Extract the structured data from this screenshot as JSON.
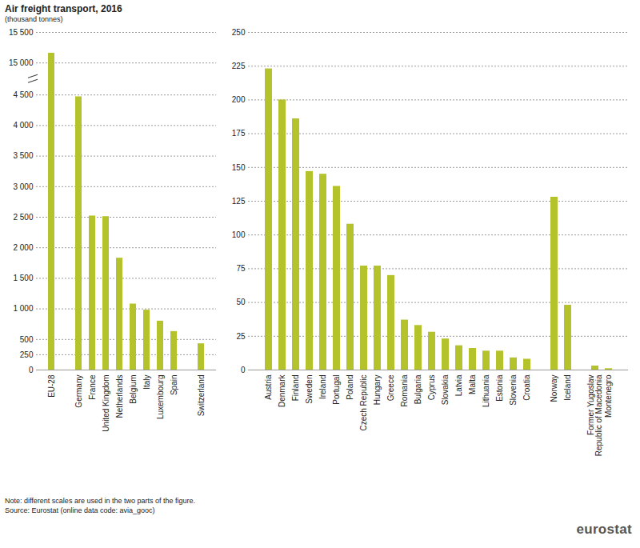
{
  "title": "Air freight transport, 2016",
  "subtitle": "(thousand tonnes)",
  "notes": [
    "Note: different scales are used in the two parts of the figure.",
    "Source: Eurostat (online data code: avia_gooc)"
  ],
  "logo": "eurostat",
  "chart_data": [
    {
      "type": "bar",
      "categories": [
        "EU-28",
        null,
        "Germany",
        "France",
        "United Kingdom",
        "Netherlands",
        "Belgium",
        "Italy",
        "Luxembourg",
        "Spain",
        null,
        "Switzerland"
      ],
      "values": [
        15160,
        null,
        4470,
        2520,
        2510,
        1830,
        1080,
        980,
        800,
        630,
        null,
        430
      ],
      "color": "#b4c22b",
      "ylim": [
        0,
        15500
      ],
      "yticks": [
        0,
        250,
        500,
        {
          "value": 1000,
          "label": "1 000"
        },
        {
          "value": 1500,
          "label": "1 500"
        },
        {
          "value": 2000,
          "label": "2 000"
        },
        {
          "value": 2500,
          "label": "2 500"
        },
        {
          "value": 3000,
          "label": "3 000"
        },
        {
          "value": 3500,
          "label": "3 500"
        },
        {
          "value": 4000,
          "label": "4 000"
        },
        {
          "value": 4500,
          "label": "4 500"
        },
        {
          "value": 15000,
          "label": "15 000"
        },
        {
          "value": 15500,
          "label": "15 500"
        }
      ],
      "grid": true
    },
    {
      "type": "bar",
      "categories": [
        "Austria",
        "Denmark",
        "Finland",
        "Sweden",
        "Ireland",
        "Portugal",
        "Poland",
        "Czech Republic",
        "Hungary",
        "Greece",
        "Romania",
        "Bulgaria",
        "Cyprus",
        "Slovakia",
        "Latvia",
        "Malta",
        "Lithuania",
        "Estonia",
        "Slovenia",
        "Croatia",
        null,
        "Norway",
        "Iceland",
        null,
        "Former Yugoslav Republic of Macedonia",
        "Montenegro"
      ],
      "values": [
        223,
        200,
        186,
        147,
        145,
        136,
        108,
        77,
        77,
        70,
        37,
        33,
        28,
        23,
        18,
        16,
        14,
        14,
        9,
        8,
        null,
        128,
        48,
        null,
        3,
        1
      ],
      "color": "#b4c22b",
      "ylim": [
        0,
        250
      ],
      "yticks": [
        0,
        25,
        50,
        75,
        100,
        125,
        150,
        175,
        200,
        225,
        250
      ],
      "grid": true
    }
  ]
}
